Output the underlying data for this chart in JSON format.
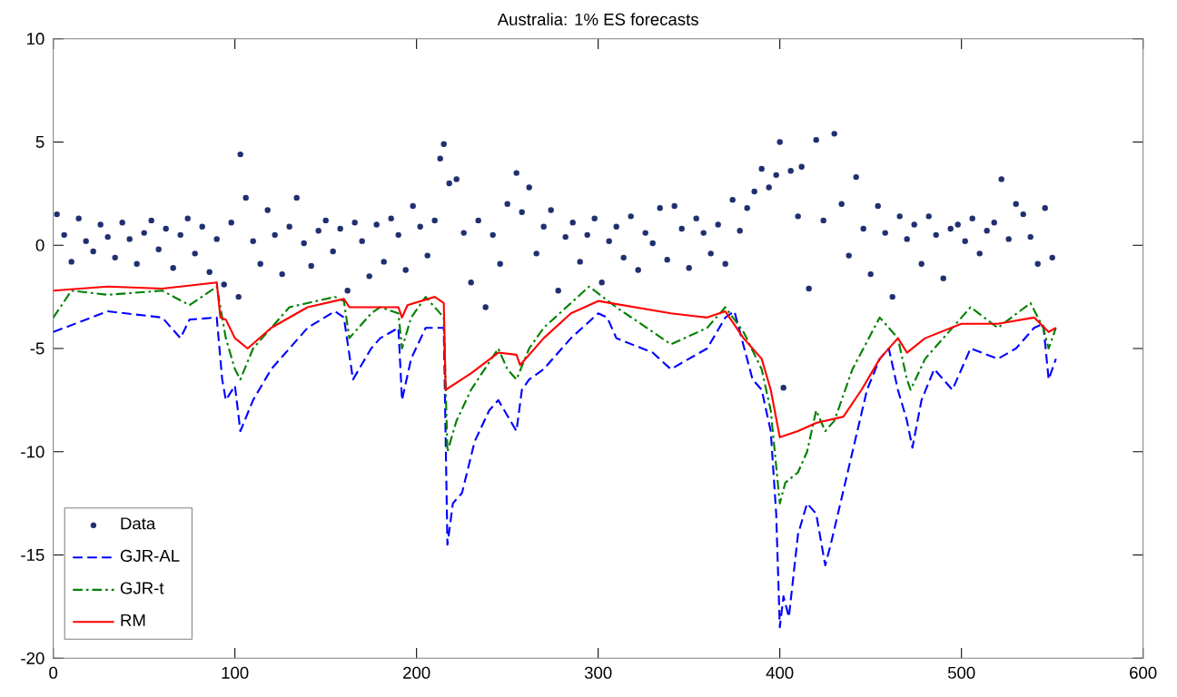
{
  "chart_data": {
    "type": "line",
    "title": "Australia: 1% ES forecasts",
    "xlim": [
      0,
      600
    ],
    "xticks": [
      0,
      100,
      200,
      300,
      400,
      500,
      600
    ],
    "ylim": [
      -20,
      10
    ],
    "yticks": [
      -20,
      -15,
      -10,
      -5,
      0,
      5,
      10
    ],
    "grid": false,
    "legend": "bottom left",
    "series": [
      {
        "name": "Data",
        "type": "scatter",
        "color": "#1f2f6f",
        "x": [
          2,
          6,
          10,
          14,
          18,
          22,
          26,
          30,
          34,
          38,
          42,
          46,
          50,
          54,
          58,
          62,
          66,
          70,
          74,
          78,
          82,
          86,
          90,
          94,
          98,
          102,
          103,
          106,
          110,
          114,
          118,
          122,
          126,
          130,
          134,
          138,
          142,
          146,
          150,
          154,
          158,
          162,
          166,
          170,
          174,
          178,
          182,
          186,
          190,
          194,
          198,
          202,
          206,
          210,
          213,
          215,
          218,
          222,
          226,
          230,
          234,
          238,
          242,
          246,
          250,
          255,
          258,
          262,
          266,
          270,
          274,
          278,
          282,
          286,
          290,
          294,
          298,
          302,
          306,
          310,
          314,
          318,
          322,
          326,
          330,
          334,
          338,
          342,
          346,
          350,
          354,
          358,
          362,
          366,
          370,
          374,
          378,
          382,
          386,
          390,
          394,
          398,
          400,
          402,
          406,
          410,
          412,
          416,
          420,
          424,
          430,
          434,
          438,
          442,
          446,
          450,
          454,
          458,
          462,
          466,
          470,
          474,
          478,
          482,
          486,
          490,
          494,
          498,
          502,
          506,
          510,
          514,
          518,
          522,
          526,
          530,
          534,
          538,
          542,
          546,
          550
        ],
        "values": [
          1.5,
          0.5,
          -0.8,
          1.3,
          0.2,
          -0.3,
          1.0,
          0.4,
          -0.6,
          1.1,
          0.3,
          -0.9,
          0.6,
          1.2,
          -0.2,
          0.8,
          -1.1,
          0.5,
          1.3,
          -0.4,
          0.9,
          -1.3,
          0.3,
          -1.9,
          1.1,
          -2.5,
          4.4,
          2.3,
          0.2,
          -0.9,
          1.7,
          0.5,
          -1.4,
          0.9,
          2.3,
          0.1,
          -1.0,
          0.7,
          1.2,
          -0.3,
          0.8,
          -2.2,
          1.1,
          0.2,
          -1.5,
          1.0,
          -0.8,
          1.3,
          0.5,
          -1.2,
          1.9,
          0.9,
          -0.5,
          1.2,
          4.2,
          4.9,
          3.0,
          3.2,
          0.6,
          -1.8,
          1.2,
          -3.0,
          0.5,
          -0.9,
          2.0,
          3.5,
          1.6,
          2.8,
          -0.4,
          0.9,
          1.7,
          -2.2,
          0.4,
          1.1,
          -0.8,
          0.5,
          1.3,
          -1.8,
          0.2,
          0.9,
          -0.6,
          1.4,
          -1.2,
          0.6,
          0.1,
          1.8,
          -0.7,
          1.9,
          0.8,
          -1.1,
          1.3,
          0.6,
          -0.4,
          1.0,
          -0.9,
          2.2,
          0.7,
          1.8,
          2.6,
          3.7,
          2.8,
          3.4,
          5.0,
          -6.9,
          3.6,
          1.4,
          3.8,
          -2.1,
          5.1,
          1.2,
          5.4,
          2.0,
          -0.5,
          3.3,
          0.8,
          -1.4,
          1.9,
          0.6,
          -2.5,
          1.4,
          0.3,
          1.0,
          -0.9,
          1.4,
          0.5,
          -1.6,
          0.8,
          1.0,
          0.2,
          1.3,
          -0.4,
          0.7,
          1.1,
          3.2,
          0.3,
          2.0,
          1.5,
          0.4,
          -0.9,
          1.8,
          -0.6
        ]
      },
      {
        "name": "GJR-AL",
        "color": "#0000ff",
        "line_style": "dashed",
        "x": [
          0,
          30,
          60,
          70,
          75,
          90,
          93,
          95,
          100,
          103,
          110,
          120,
          140,
          155,
          160,
          165,
          175,
          180,
          190,
          192,
          197,
          205,
          215,
          217,
          220,
          225,
          232,
          240,
          245,
          255,
          258,
          262,
          270,
          285,
          300,
          305,
          310,
          330,
          340,
          360,
          370,
          375,
          385,
          390,
          395,
          398,
          400,
          402,
          405,
          410,
          415,
          420,
          425,
          428,
          432,
          440,
          448,
          455,
          460,
          465,
          470,
          473,
          478,
          485,
          495,
          500,
          505,
          520,
          530,
          540,
          545,
          548,
          552
        ],
        "values": [
          -4.2,
          -3.2,
          -3.5,
          -4.5,
          -3.6,
          -3.5,
          -6.5,
          -7.5,
          -6.8,
          -9.0,
          -7.5,
          -6.0,
          -4.0,
          -3.2,
          -3.5,
          -6.5,
          -5.0,
          -4.5,
          -4.0,
          -7.5,
          -5.5,
          -4.0,
          -4.0,
          -14.5,
          -12.5,
          -12.0,
          -9.5,
          -8.0,
          -7.5,
          -9.0,
          -7.0,
          -6.5,
          -6.0,
          -4.5,
          -3.3,
          -3.5,
          -4.5,
          -5.2,
          -6.0,
          -5.0,
          -3.5,
          -3.2,
          -6.5,
          -7.0,
          -9.0,
          -13.0,
          -18.5,
          -17.0,
          -18.0,
          -14.0,
          -12.5,
          -13.0,
          -15.5,
          -14.5,
          -13.0,
          -10.0,
          -7.0,
          -5.5,
          -5.0,
          -7.0,
          -8.5,
          -9.8,
          -7.5,
          -6.0,
          -7.0,
          -6.0,
          -5.0,
          -5.5,
          -5.0,
          -4.0,
          -3.8,
          -6.5,
          -5.5
        ]
      },
      {
        "name": "GJR-t",
        "color": "#008000",
        "line_style": "dashdot",
        "x": [
          0,
          10,
          30,
          60,
          75,
          90,
          93,
          95,
          100,
          103,
          110,
          130,
          155,
          160,
          163,
          175,
          180,
          190,
          192,
          197,
          205,
          215,
          217,
          222,
          230,
          245,
          250,
          255,
          262,
          270,
          295,
          310,
          340,
          360,
          370,
          380,
          390,
          395,
          400,
          403,
          410,
          415,
          420,
          425,
          430,
          440,
          455,
          465,
          470,
          472,
          480,
          490,
          505,
          520,
          538,
          545,
          548,
          552
        ],
        "values": [
          -3.5,
          -2.2,
          -2.4,
          -2.2,
          -2.9,
          -2.0,
          -3.5,
          -4.5,
          -6.0,
          -6.5,
          -5.0,
          -3.0,
          -2.5,
          -2.7,
          -4.5,
          -3.3,
          -3.0,
          -3.3,
          -5.0,
          -3.5,
          -2.5,
          -3.5,
          -10.0,
          -8.5,
          -7.0,
          -5.0,
          -6.0,
          -6.5,
          -5.0,
          -4.0,
          -2.0,
          -3.0,
          -4.8,
          -4.0,
          -3.0,
          -4.2,
          -6.0,
          -8.0,
          -12.5,
          -11.5,
          -11.0,
          -10.0,
          -8.0,
          -9.0,
          -8.5,
          -6.0,
          -3.5,
          -4.5,
          -6.5,
          -7.0,
          -5.5,
          -4.5,
          -3.0,
          -4.0,
          -2.8,
          -4.0,
          -5.0,
          -4.0
        ]
      },
      {
        "name": "RM",
        "color": "#ff0000",
        "line_style": "solid",
        "x": [
          0,
          30,
          60,
          90,
          92,
          95,
          100,
          107,
          120,
          140,
          160,
          163,
          190,
          192,
          195,
          210,
          215,
          216,
          230,
          245,
          255,
          257,
          270,
          285,
          300,
          320,
          340,
          360,
          370,
          380,
          390,
          395,
          400,
          410,
          420,
          435,
          445,
          455,
          465,
          470,
          480,
          500,
          520,
          540,
          548,
          552
        ],
        "values": [
          -2.2,
          -2.0,
          -2.1,
          -1.8,
          -3.5,
          -3.6,
          -4.5,
          -5.0,
          -4.0,
          -3.0,
          -2.6,
          -3.0,
          -3.0,
          -3.5,
          -2.9,
          -2.5,
          -2.8,
          -7.0,
          -6.2,
          -5.2,
          -5.3,
          -5.8,
          -4.5,
          -3.3,
          -2.7,
          -3.0,
          -3.3,
          -3.5,
          -3.2,
          -4.5,
          -5.5,
          -7.0,
          -9.3,
          -9.0,
          -8.6,
          -8.3,
          -7.0,
          -5.5,
          -4.5,
          -5.2,
          -4.5,
          -3.8,
          -3.8,
          -3.5,
          -4.2,
          -4.0
        ]
      }
    ]
  }
}
